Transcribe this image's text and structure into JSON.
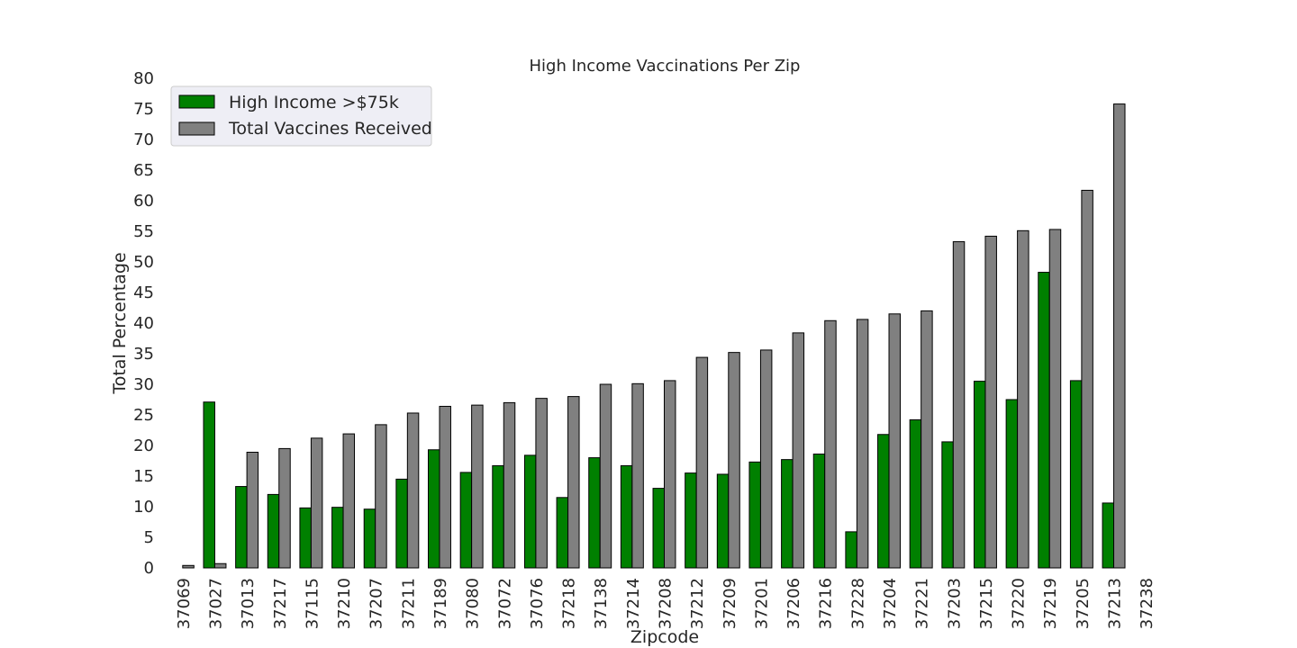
{
  "chart_data": {
    "type": "bar",
    "title": "High Income Vaccinations Per Zip",
    "xlabel": "Zipcode",
    "ylabel": "Total Percentage",
    "ylim": [
      0,
      80
    ],
    "yticks": [
      0,
      5,
      10,
      15,
      20,
      25,
      30,
      35,
      40,
      45,
      50,
      55,
      60,
      65,
      70,
      75,
      80
    ],
    "grid": false,
    "legend_position": "top-left",
    "categories": [
      "37069",
      "37027",
      "37013",
      "37217",
      "37115",
      "37210",
      "37207",
      "37211",
      "37189",
      "37080",
      "37072",
      "37076",
      "37218",
      "37138",
      "37214",
      "37208",
      "37212",
      "37209",
      "37201",
      "37206",
      "37216",
      "37228",
      "37204",
      "37221",
      "37203",
      "37215",
      "37220",
      "37219",
      "37205",
      "37213",
      "37238"
    ],
    "series": [
      {
        "name": "High Income >$75k",
        "color": "#008000",
        "values": [
          0,
          27.1,
          13.3,
          12.0,
          9.8,
          9.9,
          9.6,
          14.5,
          19.3,
          15.6,
          16.7,
          18.4,
          11.5,
          18.0,
          16.7,
          13.0,
          15.5,
          15.3,
          17.3,
          17.7,
          18.6,
          5.9,
          21.8,
          24.2,
          20.6,
          30.5,
          27.5,
          48.3,
          30.6,
          10.6,
          0
        ]
      },
      {
        "name": "Total Vaccines Received",
        "color": "#808080",
        "values": [
          0.4,
          0.7,
          18.9,
          19.5,
          21.2,
          21.9,
          23.4,
          25.3,
          26.4,
          26.6,
          27.0,
          27.7,
          28.0,
          30.0,
          30.1,
          30.6,
          34.4,
          35.2,
          35.6,
          38.4,
          40.4,
          40.6,
          41.5,
          42.0,
          53.3,
          54.2,
          55.1,
          55.3,
          61.7,
          75.8,
          0
        ]
      }
    ]
  }
}
